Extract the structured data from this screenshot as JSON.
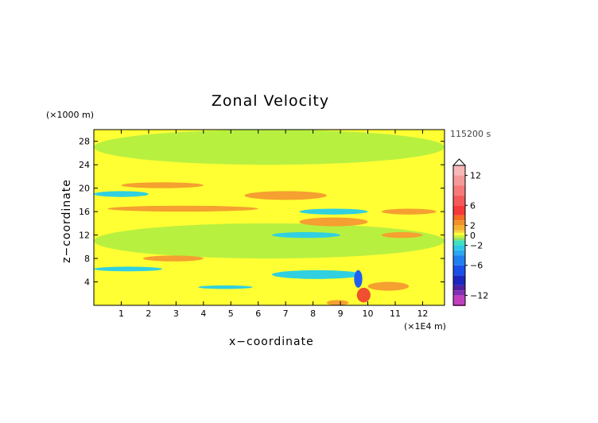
{
  "chart_data": {
    "type": "heatmap",
    "title": "Zonal Velocity",
    "xlabel": "x−coordinate",
    "ylabel": "z−coordinate",
    "x_unit": "(×1E4 m)",
    "y_unit": "(×1000 m)",
    "time_label": "115200 s",
    "xlim": [
      0,
      12.8
    ],
    "ylim": [
      0,
      30
    ],
    "x_ticks": [
      1,
      2,
      3,
      4,
      5,
      6,
      7,
      8,
      9,
      10,
      11,
      12
    ],
    "y_ticks": [
      4,
      8,
      12,
      16,
      20,
      24,
      28
    ],
    "colorbar": {
      "labels": [
        {
          "text": "12",
          "value": 12
        },
        {
          "text": "6",
          "value": 6
        },
        {
          "text": "2",
          "value": 2
        },
        {
          "text": "0",
          "value": 0
        },
        {
          "text": "−2",
          "value": -2
        },
        {
          "text": "−6",
          "value": -6
        },
        {
          "text": "−12",
          "value": -12
        }
      ],
      "levels": [
        {
          "value": 14,
          "color": "#f7b8b8"
        },
        {
          "value": 12,
          "color": "#f59a9a"
        },
        {
          "value": 10,
          "color": "#f77a7a"
        },
        {
          "value": 8,
          "color": "#f55a5a"
        },
        {
          "value": 6,
          "color": "#f53a3a"
        },
        {
          "value": 4,
          "color": "#f26d22"
        },
        {
          "value": 3,
          "color": "#f0902a"
        },
        {
          "value": 2,
          "color": "#f5b030"
        },
        {
          "value": 1,
          "color": "#f7d040"
        },
        {
          "value": 0.5,
          "color": "#ffff33"
        },
        {
          "value": 0,
          "color": "#c8f040"
        },
        {
          "value": -0.5,
          "color": "#90e060"
        },
        {
          "value": -1,
          "color": "#40e0c0"
        },
        {
          "value": -2,
          "color": "#30c8e8"
        },
        {
          "value": -3,
          "color": "#2aa8f0"
        },
        {
          "value": -4,
          "color": "#2080f0"
        },
        {
          "value": -6,
          "color": "#1a50e8"
        },
        {
          "value": -8,
          "color": "#1a28c0"
        },
        {
          "value": -10,
          "color": "#5020a0"
        },
        {
          "value": -11,
          "color": "#8030b0"
        },
        {
          "value": -12,
          "color": "#c040c0"
        },
        {
          "value": -14,
          "color": "#f060d0"
        }
      ]
    },
    "regions": [
      {
        "level": "yellow",
        "x": [
          0,
          12.8
        ],
        "z": [
          0,
          30
        ],
        "approx_u": 0.5
      },
      {
        "level": "green",
        "x": [
          0,
          12.8
        ],
        "z": [
          24,
          30
        ],
        "approx_u": -0.3
      },
      {
        "level": "green",
        "x": [
          0,
          12.8
        ],
        "z": [
          8,
          14
        ],
        "approx_u": -0.3
      },
      {
        "level": "orange",
        "x": [
          1,
          4
        ],
        "z": [
          20,
          21
        ],
        "approx_u": 2.5
      },
      {
        "level": "orange",
        "x": [
          5.5,
          8.5
        ],
        "z": [
          18,
          19.5
        ],
        "approx_u": 2.5
      },
      {
        "level": "cyan",
        "x": [
          0,
          2
        ],
        "z": [
          18.5,
          19.5
        ],
        "approx_u": -1.5
      },
      {
        "level": "orange",
        "x": [
          0.5,
          6
        ],
        "z": [
          16,
          17
        ],
        "approx_u": 2.5
      },
      {
        "level": "cyan",
        "x": [
          7.5,
          10
        ],
        "z": [
          15.5,
          16.5
        ],
        "approx_u": -1.5
      },
      {
        "level": "orange",
        "x": [
          7.5,
          10
        ],
        "z": [
          13.5,
          15
        ],
        "approx_u": 2.5
      },
      {
        "level": "orange",
        "x": [
          10.5,
          12.5
        ],
        "z": [
          15.5,
          16.5
        ],
        "approx_u": 2.5
      },
      {
        "level": "cyan",
        "x": [
          6.5,
          9
        ],
        "z": [
          11.5,
          12.5
        ],
        "approx_u": -1.5
      },
      {
        "level": "orange",
        "x": [
          10.5,
          12
        ],
        "z": [
          11.5,
          12.5
        ],
        "approx_u": 2.5
      },
      {
        "level": "orange",
        "x": [
          1.8,
          4
        ],
        "z": [
          7.5,
          8.5
        ],
        "approx_u": 2.5
      },
      {
        "level": "cyan",
        "x": [
          0,
          2.5
        ],
        "z": [
          5.8,
          6.6
        ],
        "approx_u": -1.5
      },
      {
        "level": "cyan",
        "x": [
          6.5,
          9.8
        ],
        "z": [
          4.5,
          6
        ],
        "approx_u": -1.5
      },
      {
        "level": "cyan",
        "x": [
          3.8,
          5.8
        ],
        "z": [
          2.8,
          3.4
        ],
        "approx_u": -1.5
      },
      {
        "level": "orange",
        "x": [
          10,
          11.5
        ],
        "z": [
          2.5,
          4
        ],
        "approx_u": 2.5
      },
      {
        "level": "orange",
        "x": [
          8.5,
          9.3
        ],
        "z": [
          0,
          0.9
        ],
        "approx_u": 3
      },
      {
        "level": "blue",
        "x": [
          9.5,
          9.8
        ],
        "z": [
          3,
          6
        ],
        "approx_u": -6
      },
      {
        "level": "red",
        "x": [
          9.6,
          10.1
        ],
        "z": [
          0.5,
          3
        ],
        "approx_u": 4
      }
    ]
  }
}
